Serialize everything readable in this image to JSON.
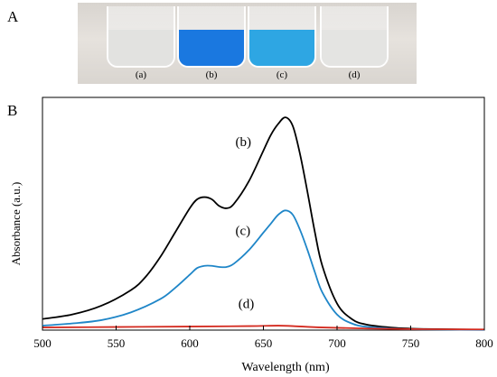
{
  "panel_a": {
    "letter": "A",
    "vials": [
      {
        "label": "(a)",
        "liquid_color": "#e2e2e0"
      },
      {
        "label": "(b)",
        "liquid_color": "#1a78e0"
      },
      {
        "label": "(c)",
        "liquid_color": "#2ea6e3"
      },
      {
        "label": "(d)",
        "liquid_color": "#e4e4e2"
      }
    ]
  },
  "panel_b": {
    "letter": "B"
  },
  "chart_data": {
    "type": "line",
    "xlabel": "Wavelength (nm)",
    "ylabel": "Absorbance (a.u.)",
    "xlim": [
      500,
      800
    ],
    "ylim": [
      0,
      1.05
    ],
    "xticks": [
      500,
      550,
      600,
      650,
      700,
      750,
      800
    ],
    "yticks": [],
    "grid": false,
    "series": [
      {
        "name": "(b)",
        "color": "#000000",
        "x": [
          500,
          520,
          540,
          560,
          570,
          580,
          590,
          600,
          605,
          610,
          615,
          620,
          625,
          630,
          640,
          650,
          655,
          660,
          665,
          670,
          675,
          680,
          685,
          690,
          700,
          710,
          720,
          740,
          760,
          800
        ],
        "y": [
          0.05,
          0.07,
          0.11,
          0.18,
          0.24,
          0.33,
          0.44,
          0.55,
          0.59,
          0.6,
          0.59,
          0.56,
          0.55,
          0.57,
          0.67,
          0.81,
          0.88,
          0.93,
          0.96,
          0.92,
          0.79,
          0.62,
          0.44,
          0.29,
          0.12,
          0.05,
          0.025,
          0.01,
          0.005,
          0.002
        ]
      },
      {
        "name": "(c)",
        "color": "#1f86c8",
        "x": [
          500,
          520,
          540,
          560,
          580,
          590,
          600,
          605,
          610,
          615,
          620,
          625,
          630,
          640,
          650,
          655,
          660,
          665,
          670,
          675,
          680,
          685,
          690,
          700,
          710,
          720,
          740,
          760,
          800
        ],
        "y": [
          0.02,
          0.03,
          0.045,
          0.08,
          0.14,
          0.19,
          0.25,
          0.28,
          0.29,
          0.29,
          0.285,
          0.285,
          0.3,
          0.36,
          0.44,
          0.48,
          0.52,
          0.54,
          0.52,
          0.45,
          0.36,
          0.26,
          0.17,
          0.07,
          0.03,
          0.015,
          0.006,
          0.003,
          0.001
        ]
      },
      {
        "name": "(d)",
        "color": "#d42a1f",
        "x": [
          500,
          550,
          600,
          640,
          660,
          670,
          690,
          720,
          760,
          800
        ],
        "y": [
          0.012,
          0.014,
          0.016,
          0.018,
          0.02,
          0.018,
          0.012,
          0.007,
          0.004,
          0.003
        ]
      }
    ],
    "annotations": [
      {
        "text": "(b)",
        "x": 631,
        "y": 0.83
      },
      {
        "text": "(c)",
        "x": 631,
        "y": 0.43
      },
      {
        "text": "(d)",
        "x": 633,
        "y": 0.1
      }
    ]
  }
}
